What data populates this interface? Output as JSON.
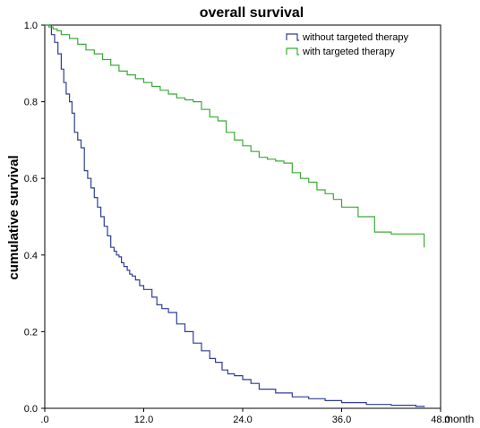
{
  "chart_data": {
    "type": "line",
    "title": "overall survival",
    "xlabel": "month",
    "ylabel": "cumulative survival",
    "xlim": [
      0,
      48
    ],
    "ylim": [
      0,
      1
    ],
    "x_ticks": [
      {
        "value": 0,
        "label": ".0"
      },
      {
        "value": 12,
        "label": "12.0"
      },
      {
        "value": 24,
        "label": "24.0"
      },
      {
        "value": 36,
        "label": "36.0"
      },
      {
        "value": 48,
        "label": "48.0"
      }
    ],
    "y_ticks": [
      {
        "value": 0,
        "label": "0.0"
      },
      {
        "value": 0.2,
        "label": "0.2"
      },
      {
        "value": 0.4,
        "label": "0.4"
      },
      {
        "value": 0.6,
        "label": "0.6"
      },
      {
        "value": 0.8,
        "label": "0.8"
      },
      {
        "value": 1.0,
        "label": "1.0"
      }
    ],
    "grid": false,
    "legend_position": "top-right",
    "step": true,
    "series": [
      {
        "name": "without targeted therapy",
        "color": "#2f3e96",
        "x": [
          0,
          0.8,
          1.2,
          1.6,
          2.0,
          2.3,
          2.6,
          3.0,
          3.3,
          3.6,
          4.0,
          4.4,
          4.8,
          5.2,
          5.6,
          6.0,
          6.4,
          6.8,
          7.2,
          7.6,
          8.0,
          8.4,
          8.7,
          9.0,
          9.3,
          9.6,
          10.0,
          10.3,
          10.6,
          11.0,
          11.5,
          12.0,
          13.0,
          13.6,
          14.2,
          15.0,
          16.0,
          17.0,
          18.0,
          19.0,
          20.0,
          20.7,
          21.5,
          22.2,
          23.0,
          24.0,
          25.0,
          26.0,
          28.0,
          30.0,
          32.0,
          34.0,
          36.0,
          39.0,
          42.0,
          45.0,
          46.0
        ],
        "y": [
          1.0,
          0.975,
          0.955,
          0.925,
          0.885,
          0.85,
          0.82,
          0.8,
          0.77,
          0.72,
          0.7,
          0.68,
          0.62,
          0.6,
          0.575,
          0.55,
          0.525,
          0.5,
          0.475,
          0.45,
          0.42,
          0.41,
          0.4,
          0.395,
          0.38,
          0.37,
          0.36,
          0.35,
          0.345,
          0.335,
          0.32,
          0.31,
          0.29,
          0.27,
          0.26,
          0.25,
          0.22,
          0.2,
          0.17,
          0.15,
          0.13,
          0.12,
          0.1,
          0.09,
          0.085,
          0.075,
          0.065,
          0.05,
          0.04,
          0.03,
          0.025,
          0.02,
          0.015,
          0.01,
          0.008,
          0.005,
          0.003
        ]
      },
      {
        "name": "with targeted therapy",
        "color": "#3aaa35",
        "x": [
          0,
          0.5,
          1.0,
          1.5,
          2.0,
          3.0,
          4.0,
          5.0,
          6.0,
          7.0,
          8.0,
          9.0,
          10.0,
          11.0,
          12.0,
          13.0,
          14.0,
          15.0,
          16.0,
          17.0,
          18.0,
          19.0,
          20.0,
          21.0,
          22.0,
          23.0,
          24.0,
          25.0,
          26.0,
          27.0,
          28.0,
          29.0,
          30.0,
          31.0,
          32.0,
          33.0,
          34.0,
          35.0,
          36.0,
          38.0,
          40.0,
          42.0,
          46.0
        ],
        "y": [
          1.0,
          0.995,
          0.99,
          0.985,
          0.975,
          0.965,
          0.95,
          0.935,
          0.925,
          0.91,
          0.895,
          0.88,
          0.87,
          0.86,
          0.85,
          0.84,
          0.83,
          0.82,
          0.81,
          0.805,
          0.8,
          0.78,
          0.76,
          0.75,
          0.72,
          0.7,
          0.685,
          0.67,
          0.655,
          0.65,
          0.645,
          0.64,
          0.615,
          0.6,
          0.59,
          0.57,
          0.56,
          0.545,
          0.525,
          0.5,
          0.46,
          0.455,
          0.42
        ]
      }
    ]
  }
}
